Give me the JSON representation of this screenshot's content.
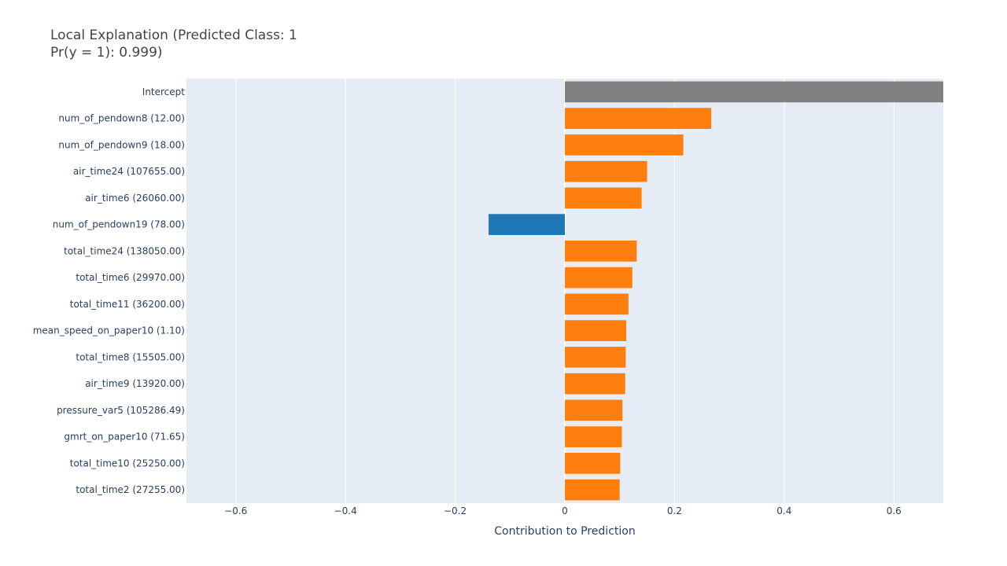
{
  "chart_data": {
    "type": "bar",
    "orientation": "horizontal",
    "title_line1": "Local Explanation (Predicted Class: 1",
    "title_line2": "Pr(y = 1): 0.999)",
    "xlabel": "Contribution to Prediction",
    "ylabel": "",
    "xlim": [
      -0.69,
      0.69
    ],
    "xticks": [
      -0.6,
      -0.4,
      -0.2,
      0,
      0.2,
      0.4,
      0.6
    ],
    "xtick_labels": [
      "−0.6",
      "−0.4",
      "−0.2",
      "0",
      "0.2",
      "0.4",
      "0.6"
    ],
    "grid": true,
    "legend": "none",
    "categories": [
      "Intercept",
      "num_of_pendown8 (12.00)",
      "num_of_pendown9 (18.00)",
      "air_time24 (107655.00)",
      "air_time6 (26060.00)",
      "num_of_pendown19 (78.00)",
      "total_time24 (138050.00)",
      "total_time6 (29970.00)",
      "total_time11 (36200.00)",
      "mean_speed_on_paper10 (1.10)",
      "total_time8 (15505.00)",
      "air_time9 (13920.00)",
      "pressure_var5 (105286.49)",
      "gmrt_on_paper10 (71.65)",
      "total_time10 (25250.00)",
      "total_time2 (27255.00)"
    ],
    "values": [
      0.72,
      0.267,
      0.216,
      0.15,
      0.14,
      -0.139,
      0.131,
      0.123,
      0.116,
      0.112,
      0.111,
      0.11,
      0.105,
      0.104,
      0.101,
      0.1
    ],
    "colors": [
      "#808080",
      "#ff7f0e",
      "#ff7f0e",
      "#ff7f0e",
      "#ff7f0e",
      "#1f77b4",
      "#ff7f0e",
      "#ff7f0e",
      "#ff7f0e",
      "#ff7f0e",
      "#ff7f0e",
      "#ff7f0e",
      "#ff7f0e",
      "#ff7f0e",
      "#ff7f0e",
      "#ff7f0e"
    ],
    "plot_background": "#e5ecf6"
  }
}
